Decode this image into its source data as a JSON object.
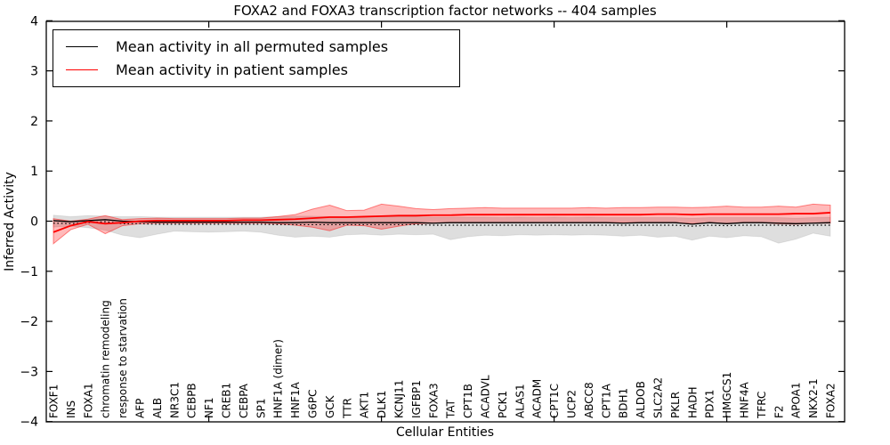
{
  "title": "FOXA2 and FOXA3 transcription factor networks -- 404 samples",
  "chart_data": {
    "type": "line",
    "title": "FOXA2 and FOXA3 transcription factor networks -- 404 samples",
    "xlabel": "Cellular Entities",
    "ylabel": "Inferred Activity",
    "ylim": [
      -4,
      4
    ],
    "yticks": [
      -4,
      -3,
      -2,
      -1,
      0,
      1,
      2,
      3,
      4
    ],
    "xticks_at_sample_numbers": [
      10,
      20,
      30,
      40
    ],
    "grid": false,
    "legend_position": "upper left",
    "background": "#ffffff",
    "categories": [
      "FOXF1",
      "INS",
      "FOXA1",
      "chromatin remodeling",
      "response to starvation",
      "AFP",
      "ALB",
      "NR3C1",
      "CEBPB",
      "NF1",
      "CREB1",
      "CEBPA",
      "SP1",
      "HNF1A (dimer)",
      "HNF1A",
      "G6PC",
      "GCK",
      "TTR",
      "AKT1",
      "DLK1",
      "KCNJ11",
      "IGFBP1",
      "FOXA3",
      "TAT",
      "CPT1B",
      "ACADVL",
      "PCK1",
      "ALAS1",
      "ACADM",
      "CPT1C",
      "UCP2",
      "ABCC8",
      "CPT1A",
      "BDH1",
      "ALDOB",
      "SLC2A2",
      "PKLR",
      "HADH",
      "PDX1",
      "HMGCS1",
      "HNF4A",
      "TFRC",
      "F2",
      "APOA1",
      "NKX2-1",
      "FOXA2"
    ],
    "series": [
      {
        "name": "Mean activity in all permuted samples",
        "color": "#000000",
        "style": "solid",
        "values": [
          0.01,
          -0.01,
          0.01,
          0.03,
          0.0,
          -0.01,
          -0.02,
          -0.02,
          -0.02,
          -0.02,
          -0.02,
          -0.02,
          -0.02,
          -0.03,
          -0.03,
          -0.02,
          -0.03,
          -0.03,
          -0.03,
          -0.03,
          -0.03,
          -0.03,
          -0.04,
          -0.03,
          -0.03,
          -0.03,
          -0.03,
          -0.03,
          -0.03,
          -0.03,
          -0.03,
          -0.03,
          -0.03,
          -0.04,
          -0.03,
          -0.03,
          -0.03,
          -0.06,
          -0.03,
          -0.05,
          -0.03,
          -0.03,
          -0.04,
          -0.05,
          -0.04,
          -0.03
        ],
        "band": {
          "upper": [
            0.12,
            0.09,
            0.11,
            0.1,
            0.09,
            0.09,
            0.08,
            0.08,
            0.08,
            0.08,
            0.08,
            0.08,
            0.08,
            0.09,
            0.1,
            0.1,
            0.09,
            0.09,
            0.09,
            0.09,
            0.09,
            0.09,
            0.08,
            0.08,
            0.08,
            0.08,
            0.07,
            0.08,
            0.07,
            0.08,
            0.07,
            0.08,
            0.07,
            0.07,
            0.07,
            0.07,
            0.07,
            0.06,
            0.07,
            0.07,
            0.07,
            0.07,
            0.07,
            0.06,
            0.07,
            0.08
          ],
          "lower": [
            -0.12,
            -0.1,
            -0.13,
            -0.18,
            -0.28,
            -0.33,
            -0.26,
            -0.2,
            -0.21,
            -0.22,
            -0.21,
            -0.2,
            -0.22,
            -0.28,
            -0.32,
            -0.3,
            -0.32,
            -0.27,
            -0.26,
            -0.28,
            -0.26,
            -0.27,
            -0.26,
            -0.37,
            -0.31,
            -0.28,
            -0.29,
            -0.27,
            -0.28,
            -0.27,
            -0.28,
            -0.27,
            -0.28,
            -0.3,
            -0.28,
            -0.32,
            -0.3,
            -0.38,
            -0.3,
            -0.33,
            -0.29,
            -0.31,
            -0.44,
            -0.36,
            -0.24,
            -0.3
          ],
          "color": "#000000",
          "opacity": 0.13
        }
      },
      {
        "name": "Mean activity in patient samples",
        "color": "#ff0000",
        "style": "solid",
        "values": [
          -0.22,
          -0.09,
          -0.01,
          -0.05,
          -0.03,
          0.0,
          0.01,
          0.01,
          0.01,
          0.01,
          0.01,
          0.02,
          0.02,
          0.03,
          0.04,
          0.06,
          0.08,
          0.08,
          0.09,
          0.1,
          0.11,
          0.11,
          0.12,
          0.12,
          0.13,
          0.13,
          0.13,
          0.13,
          0.13,
          0.13,
          0.13,
          0.13,
          0.13,
          0.13,
          0.13,
          0.14,
          0.14,
          0.13,
          0.14,
          0.14,
          0.14,
          0.14,
          0.14,
          0.15,
          0.15,
          0.17
        ],
        "band": {
          "upper": [
            0.05,
            0.0,
            0.04,
            0.11,
            0.03,
            0.05,
            0.06,
            0.05,
            0.05,
            0.05,
            0.05,
            0.06,
            0.06,
            0.09,
            0.13,
            0.24,
            0.32,
            0.21,
            0.22,
            0.34,
            0.3,
            0.25,
            0.23,
            0.25,
            0.26,
            0.27,
            0.26,
            0.26,
            0.26,
            0.26,
            0.26,
            0.27,
            0.26,
            0.27,
            0.27,
            0.28,
            0.28,
            0.27,
            0.28,
            0.3,
            0.28,
            0.28,
            0.3,
            0.28,
            0.34,
            0.32
          ],
          "lower": [
            -0.45,
            -0.17,
            -0.06,
            -0.25,
            -0.09,
            -0.05,
            -0.04,
            -0.04,
            -0.04,
            -0.04,
            -0.04,
            -0.04,
            -0.04,
            -0.05,
            -0.08,
            -0.12,
            -0.19,
            -0.08,
            -0.09,
            -0.16,
            -0.1,
            -0.05,
            -0.04,
            -0.03,
            -0.03,
            -0.03,
            -0.03,
            -0.03,
            -0.03,
            -0.03,
            -0.03,
            -0.03,
            -0.03,
            -0.03,
            -0.03,
            -0.03,
            -0.03,
            -0.05,
            -0.03,
            -0.05,
            -0.03,
            -0.03,
            -0.05,
            -0.06,
            -0.04,
            -0.04
          ],
          "color": "#ff0000",
          "opacity": 0.27
        }
      },
      {
        "name": "dotted-black-reference-line",
        "color": "#000000",
        "style": "dotted",
        "values": [
          -0.04,
          -0.05,
          -0.03,
          -0.01,
          -0.05,
          -0.05,
          -0.06,
          -0.06,
          -0.06,
          -0.06,
          -0.06,
          -0.06,
          -0.06,
          -0.07,
          -0.07,
          -0.07,
          -0.07,
          -0.07,
          -0.07,
          -0.07,
          -0.07,
          -0.07,
          -0.08,
          -0.08,
          -0.08,
          -0.08,
          -0.08,
          -0.08,
          -0.08,
          -0.08,
          -0.08,
          -0.08,
          -0.08,
          -0.08,
          -0.08,
          -0.08,
          -0.08,
          -0.1,
          -0.08,
          -0.09,
          -0.08,
          -0.08,
          -0.08,
          -0.09,
          -0.08,
          -0.08
        ]
      }
    ]
  }
}
